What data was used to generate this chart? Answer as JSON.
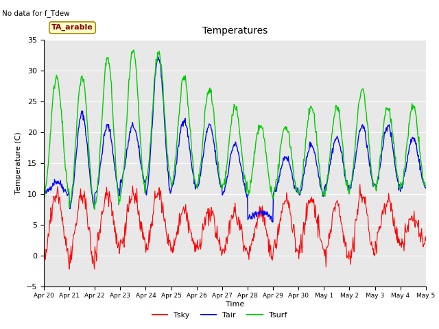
{
  "title": "Temperatures",
  "no_data_text": "No data for f_Tdew",
  "ta_arable_text": "TA_arable",
  "ylabel": "Temperature (C)",
  "xlabel": "Time",
  "ylim": [
    -5,
    35
  ],
  "bg_color": "#e8e8e8",
  "fig_color": "#ffffff",
  "legend_entries": [
    "Tsky",
    "Tair",
    "Tsurf"
  ],
  "legend_colors": [
    "#ff0000",
    "#0000ff",
    "#00cc00"
  ],
  "x_tick_labels": [
    "Apr 20",
    "Apr 21",
    "Apr 22",
    "Apr 23",
    "Apr 24",
    "Apr 25",
    "Apr 26",
    "Apr 27",
    "Apr 28",
    "Apr 29",
    "Apr 30",
    "May 1",
    "May 2",
    "May 3",
    "May 4",
    "May 5"
  ]
}
